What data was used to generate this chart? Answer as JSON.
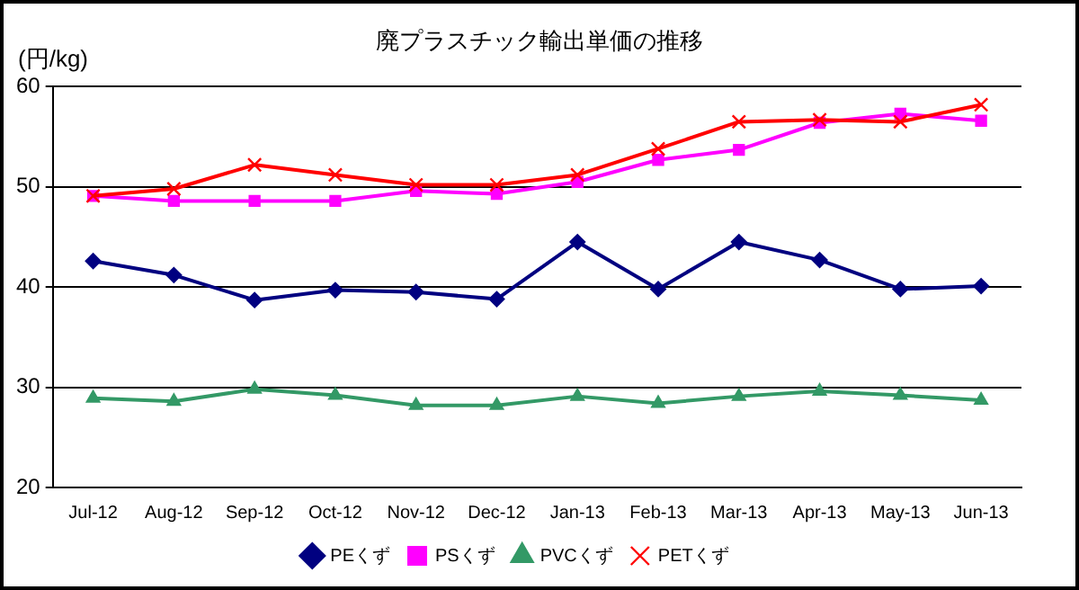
{
  "chart_data": {
    "type": "line",
    "title": "廃プラスチック輸出単価の推移",
    "ylabel": "(円/kg)",
    "categories": [
      "Jul-12",
      "Aug-12",
      "Sep-12",
      "Oct-12",
      "Nov-12",
      "Dec-12",
      "Jan-13",
      "Feb-13",
      "Mar-13",
      "Apr-13",
      "May-13",
      "Jun-13"
    ],
    "series": [
      {
        "name": "PEくず",
        "color": "#000080",
        "marker": "diamond",
        "values": [
          42.6,
          41.2,
          38.7,
          39.7,
          39.5,
          38.8,
          44.5,
          39.8,
          44.5,
          42.7,
          39.8,
          40.1
        ]
      },
      {
        "name": "PSくず",
        "color": "#ff00ff",
        "marker": "square",
        "values": [
          49.1,
          48.6,
          48.6,
          48.6,
          49.6,
          49.3,
          50.5,
          52.7,
          53.7,
          56.4,
          57.3,
          56.6
        ]
      },
      {
        "name": "PVCくず",
        "color": "#339966",
        "marker": "triangle",
        "values": [
          28.9,
          28.6,
          29.8,
          29.2,
          28.2,
          28.2,
          29.1,
          28.4,
          29.1,
          29.6,
          29.2,
          28.7
        ]
      },
      {
        "name": "PETくず",
        "color": "#ff0000",
        "marker": "cross",
        "values": [
          49.1,
          49.8,
          52.2,
          51.2,
          50.2,
          50.2,
          51.2,
          53.8,
          56.5,
          56.7,
          56.5,
          58.2
        ]
      }
    ],
    "ylim": [
      20,
      60
    ],
    "yticks": [
      20,
      30,
      40,
      50,
      60
    ],
    "grid": "y",
    "legend": "bottom"
  }
}
